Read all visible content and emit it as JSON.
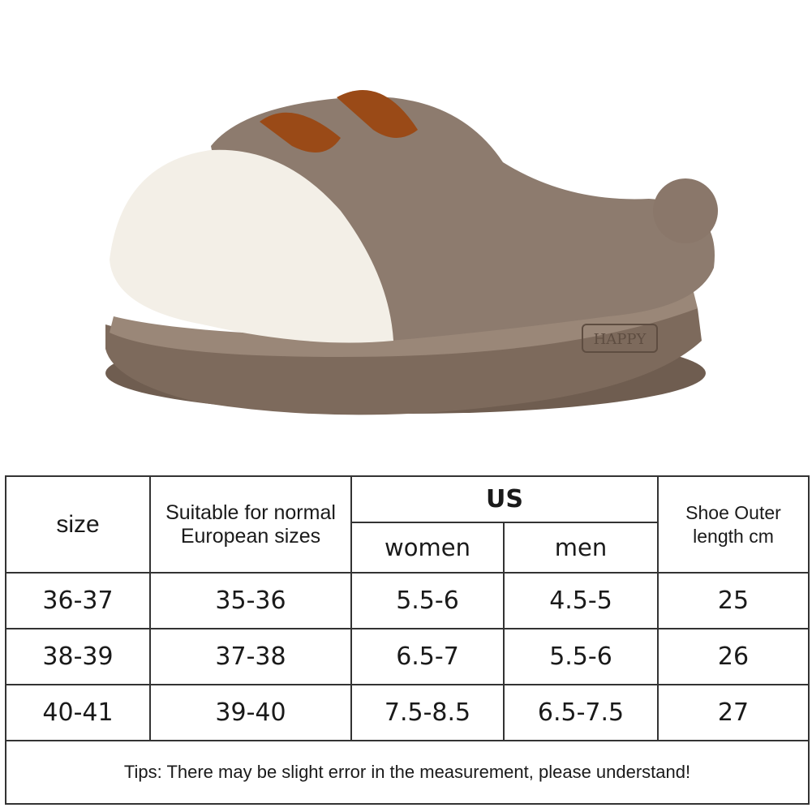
{
  "product_image": {
    "sole_logo": "HAPPY",
    "colors": {
      "fur": "#8d7b6e",
      "toe": "#f3efe7",
      "ears": "#9a4a17",
      "sole": "#7d6a5c"
    }
  },
  "table": {
    "headers": {
      "size": "size",
      "european": "Suitable for normal European sizes",
      "us": "US",
      "women": "women",
      "men": "men",
      "length": "Shoe Outer length cm"
    },
    "rows": [
      {
        "size": "36-37",
        "european": "35-36",
        "women": "5.5-6",
        "men": "4.5-5",
        "length": "25"
      },
      {
        "size": "38-39",
        "european": "37-38",
        "women": "6.5-7",
        "men": "5.5-6",
        "length": "26"
      },
      {
        "size": "40-41",
        "european": "39-40",
        "women": "7.5-8.5",
        "men": "6.5-7.5",
        "length": "27"
      }
    ],
    "tips": "Tips: There may be slight error in the measurement, please understand!"
  }
}
